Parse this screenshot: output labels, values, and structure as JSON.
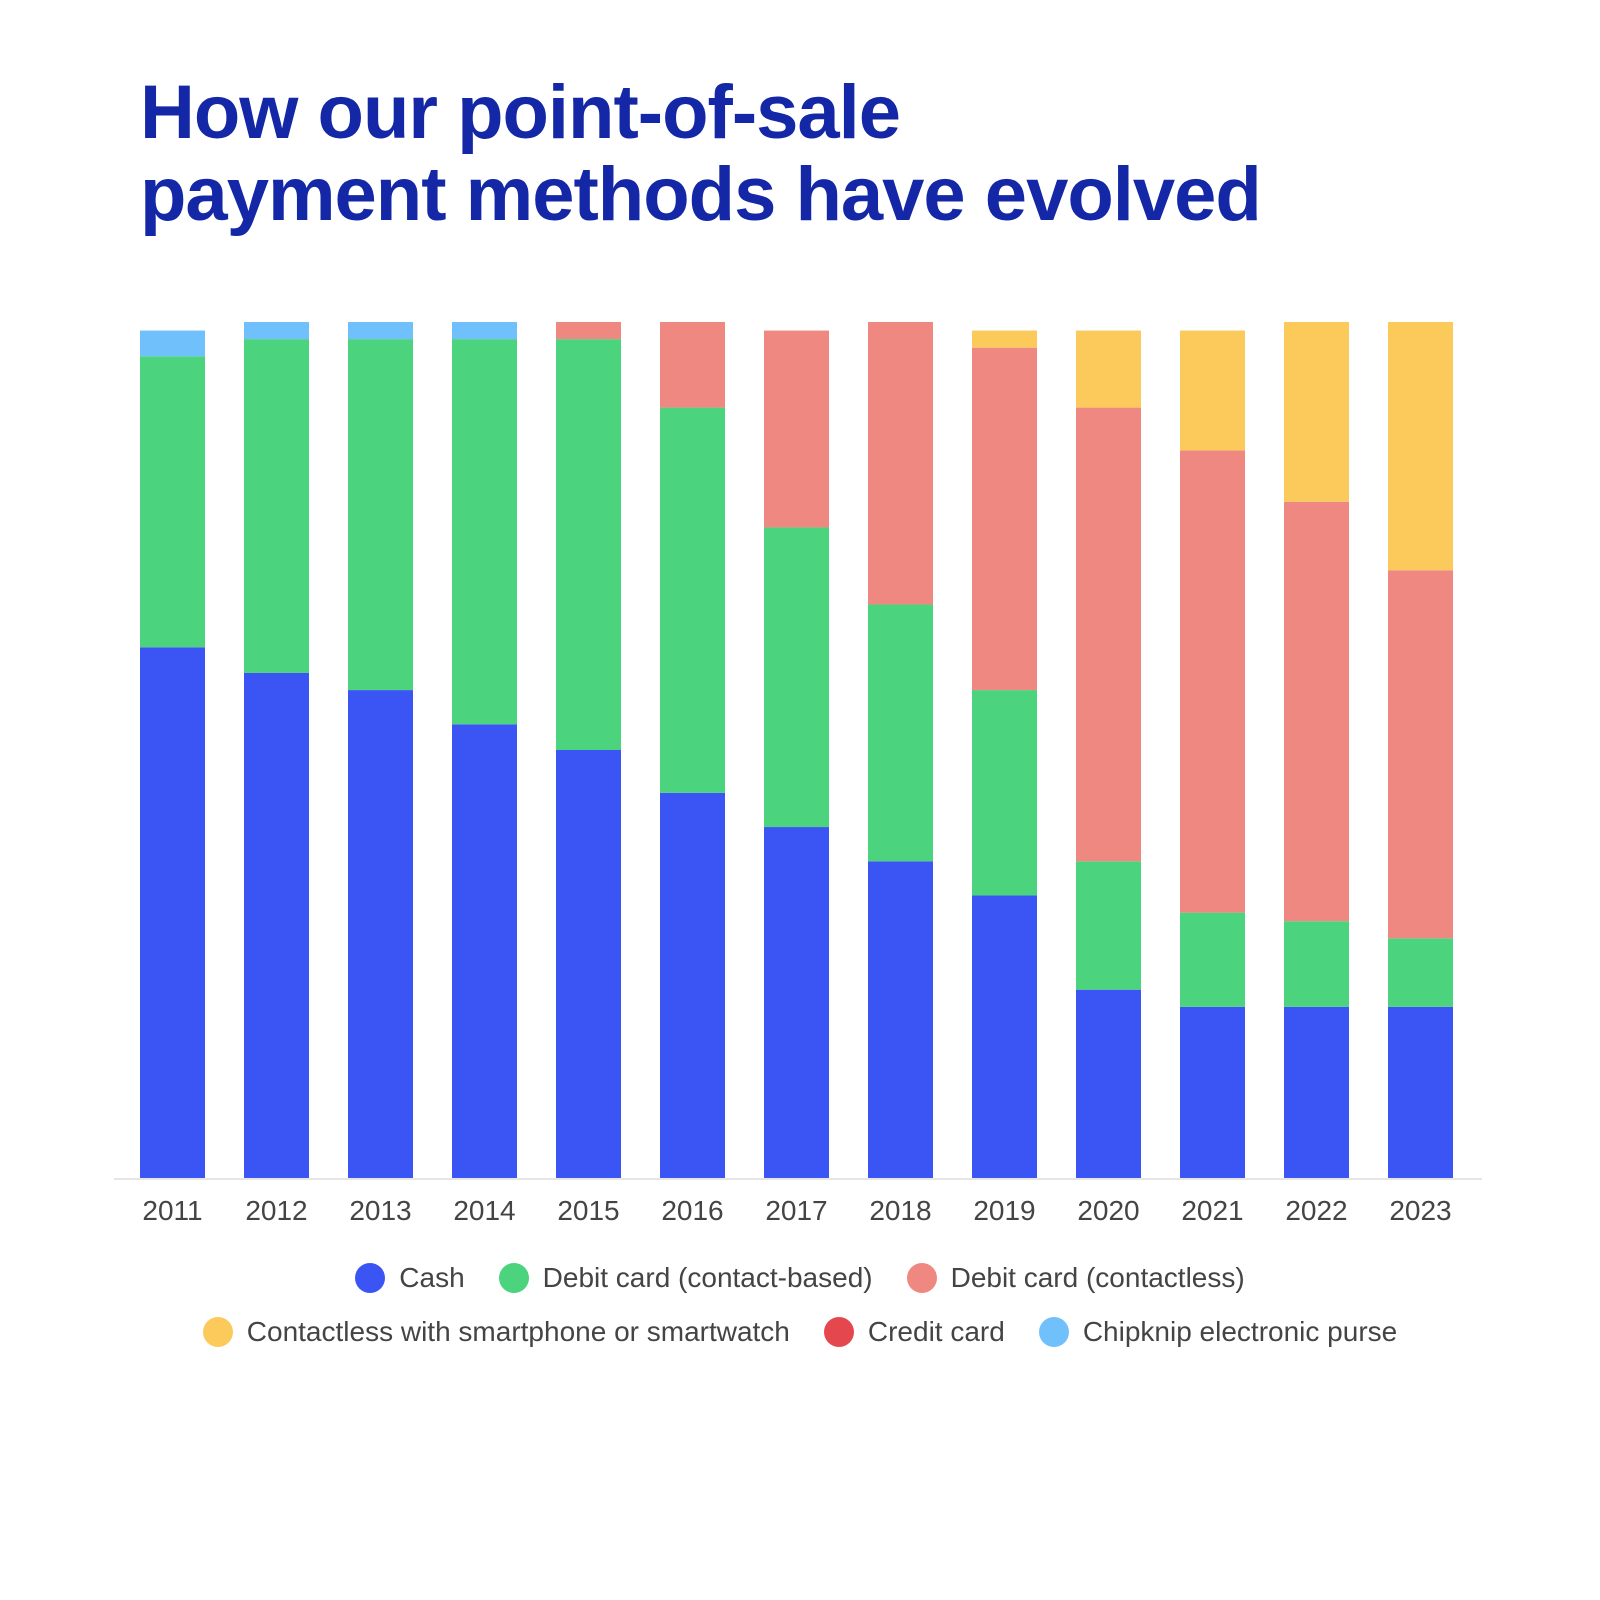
{
  "title": {
    "line1": "How our point-of-sale",
    "line2": "payment methods have evolved"
  },
  "chart_data": {
    "type": "bar",
    "stacked": true,
    "categories": [
      "2011",
      "2012",
      "2013",
      "2014",
      "2015",
      "2016",
      "2017",
      "2018",
      "2019",
      "2020",
      "2021",
      "2022",
      "2023"
    ],
    "ylim": [
      0,
      100
    ],
    "grid": false,
    "legend_position": "bottom",
    "series": [
      {
        "name": "Cash",
        "color": "#3b55f5",
        "values": [
          62,
          59,
          57,
          53,
          50,
          45,
          41,
          37,
          33,
          22,
          20,
          20,
          20
        ]
      },
      {
        "name": "Debit card (contact-based)",
        "color": "#4bd37e",
        "values": [
          34,
          39,
          41,
          45,
          48,
          45,
          35,
          30,
          24,
          15,
          11,
          10,
          8
        ]
      },
      {
        "name": "Debit card (contactless)",
        "color": "#f08882",
        "values": [
          0,
          0,
          0,
          0,
          2,
          10,
          23,
          33,
          40,
          53,
          54,
          49,
          43
        ]
      },
      {
        "name": "Contactless with smartphone or smartwatch",
        "color": "#fcc95b",
        "values": [
          0,
          0,
          0,
          0,
          0,
          0,
          0,
          0,
          2,
          9,
          14,
          21,
          29
        ]
      },
      {
        "name": "Credit card",
        "color": "#e5474f",
        "values": [
          0,
          0,
          0,
          0,
          0,
          0,
          0,
          0,
          0,
          0,
          0,
          0,
          0
        ]
      },
      {
        "name": "Chipknip electronic purse",
        "color": "#70c0fb",
        "values": [
          3,
          2,
          2,
          2,
          0,
          0,
          0,
          0,
          0,
          0,
          0,
          0,
          0
        ]
      }
    ]
  }
}
